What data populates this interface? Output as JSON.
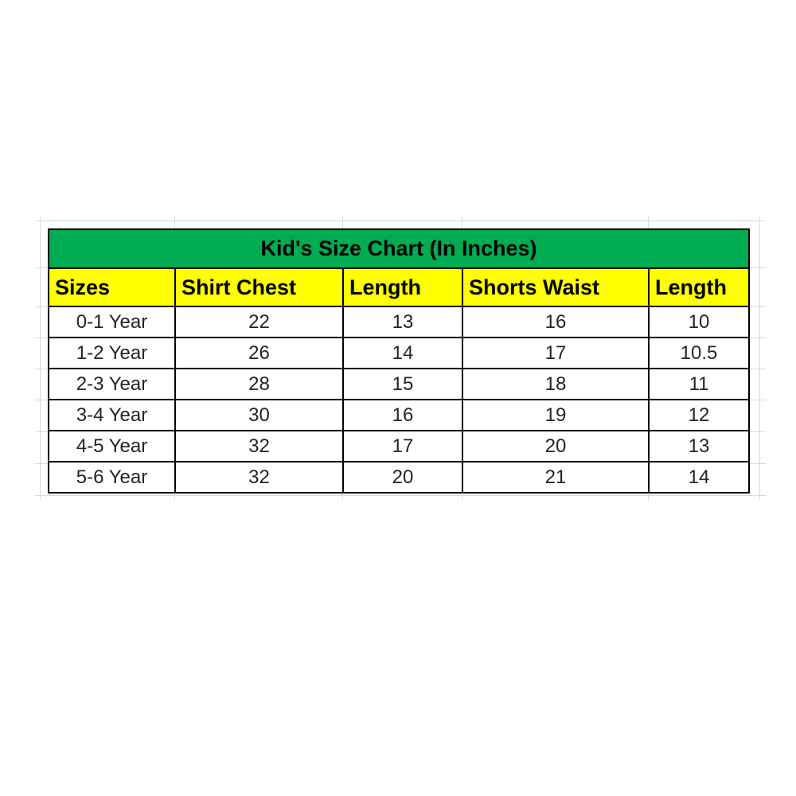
{
  "colors": {
    "title_bg": "#01ab51",
    "header_bg": "#ffff00",
    "cell_bg": "#ffffff",
    "border": "#000000",
    "gridline": "#d9d9d9",
    "text": "#23232c"
  },
  "chart_data": {
    "type": "table",
    "title": "Kid's Size Chart (In Inches)",
    "columns": [
      "Sizes",
      "Shirt Chest",
      "Length",
      "Shorts Waist",
      "Length"
    ],
    "rows": [
      [
        "0-1 Year",
        "22",
        "13",
        "16",
        "10"
      ],
      [
        "1-2 Year",
        "26",
        "14",
        "17",
        "10.5"
      ],
      [
        "2-3 Year",
        "28",
        "15",
        "18",
        "11"
      ],
      [
        "3-4 Year",
        "30",
        "16",
        "19",
        "12"
      ],
      [
        "4-5 Year",
        "32",
        "17",
        "20",
        "13"
      ],
      [
        "5-6 Year",
        "32",
        "20",
        "21",
        "14"
      ]
    ],
    "layout": {
      "title_row_align": "center",
      "header_align": "left",
      "data_align": "center",
      "spreadsheet_gridlines_visible": true
    }
  }
}
